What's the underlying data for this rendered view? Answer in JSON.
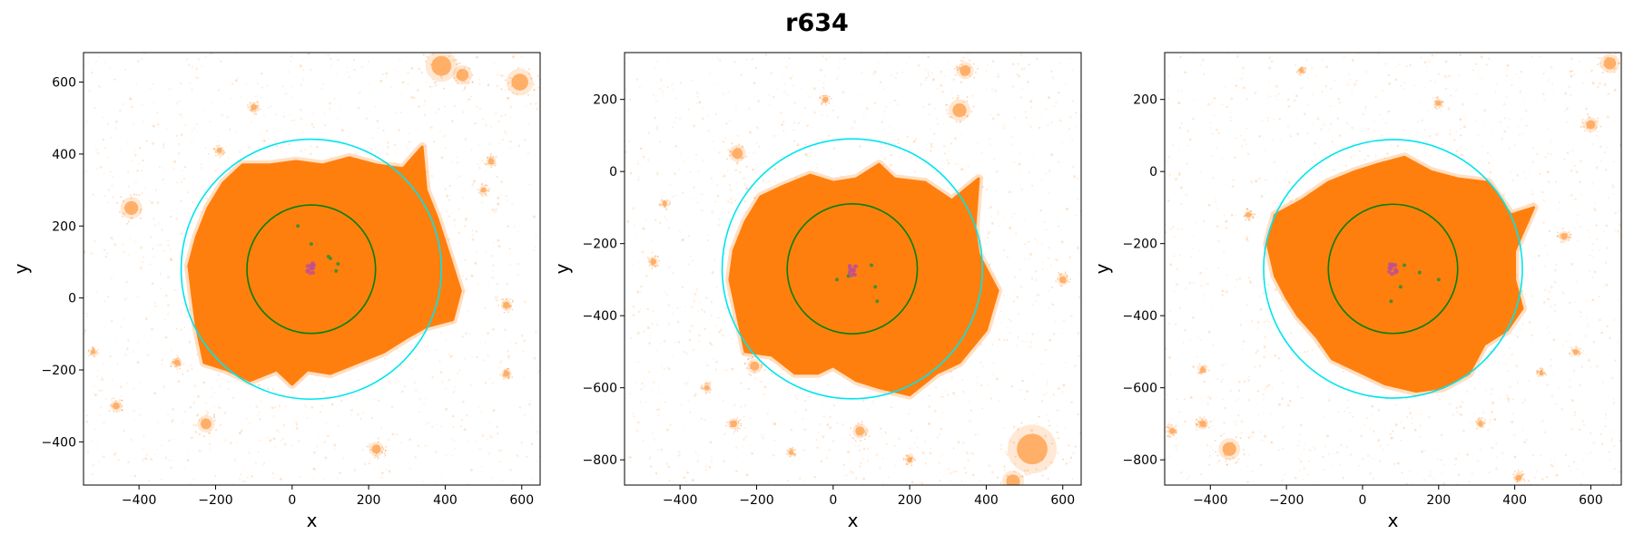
{
  "title": "r634",
  "colors": {
    "particles": "#ff7f0e",
    "outer_circle": "#00e5ee",
    "inner_circle": "#008000",
    "subhalos": "#4c8c2a",
    "center_cluster": "#c05090"
  },
  "chart_data": [
    {
      "type": "scatter",
      "xlabel": "x",
      "ylabel": "y",
      "xlim": [
        -545,
        648
      ],
      "ylim": [
        -520,
        682
      ],
      "xticks": [
        -400,
        -200,
        0,
        200,
        400,
        600
      ],
      "yticks": [
        -400,
        -200,
        0,
        200,
        400,
        600
      ],
      "xtick_labels": [
        "−400",
        "−200",
        "0",
        "200",
        "400",
        "600"
      ],
      "ytick_labels": [
        "−400",
        "−200",
        "0",
        "200",
        "400",
        "600"
      ],
      "outer_circle": {
        "cx": 50,
        "cy": 80,
        "r": 340
      },
      "inner_circle": {
        "cx": 50,
        "cy": 80,
        "r": 168
      },
      "blob": [
        [
          -230,
          -180
        ],
        [
          -170,
          -200
        ],
        [
          -110,
          -230
        ],
        [
          -40,
          -200
        ],
        [
          0,
          -240
        ],
        [
          40,
          -200
        ],
        [
          100,
          -210
        ],
        [
          170,
          -180
        ],
        [
          240,
          -150
        ],
        [
          300,
          -110
        ],
        [
          350,
          -80
        ],
        [
          420,
          -60
        ],
        [
          440,
          20
        ],
        [
          410,
          120
        ],
        [
          380,
          220
        ],
        [
          350,
          300
        ],
        [
          340,
          420
        ],
        [
          290,
          360
        ],
        [
          220,
          370
        ],
        [
          150,
          390
        ],
        [
          80,
          370
        ],
        [
          10,
          380
        ],
        [
          -60,
          370
        ],
        [
          -130,
          370
        ],
        [
          -180,
          320
        ],
        [
          -220,
          250
        ],
        [
          -250,
          170
        ],
        [
          -270,
          90
        ],
        [
          -260,
          0
        ],
        [
          -250,
          -80
        ]
      ],
      "clumps": [
        [
          -420,
          250,
          18
        ],
        [
          -225,
          -350,
          14
        ],
        [
          -460,
          -300,
          9
        ],
        [
          595,
          600,
          22
        ],
        [
          390,
          645,
          26
        ],
        [
          445,
          620,
          16
        ],
        [
          -100,
          530,
          8
        ],
        [
          520,
          380,
          8
        ],
        [
          560,
          -20,
          9
        ],
        [
          -300,
          -180,
          8
        ],
        [
          220,
          -420,
          12
        ],
        [
          560,
          -210,
          8
        ],
        [
          -520,
          -150,
          6
        ],
        [
          -190,
          410,
          7
        ],
        [
          500,
          300,
          7
        ]
      ],
      "subhalos": [
        [
          15,
          200
        ],
        [
          50,
          150
        ],
        [
          100,
          110
        ],
        [
          120,
          95
        ],
        [
          115,
          75
        ],
        [
          95,
          115
        ]
      ],
      "center": [
        50,
        82
      ]
    },
    {
      "type": "scatter",
      "xlabel": "x",
      "ylabel": "y",
      "xlim": [
        -545,
        648
      ],
      "ylim": [
        -870,
        330
      ],
      "xticks": [
        -400,
        -200,
        0,
        200,
        400,
        600
      ],
      "yticks": [
        -800,
        -600,
        -400,
        -200,
        0,
        200
      ],
      "xtick_labels": [
        "−400",
        "−200",
        "0",
        "200",
        "400",
        "600"
      ],
      "ytick_labels": [
        "−800",
        "−600",
        "−400",
        "−200",
        "0",
        "200"
      ],
      "outer_circle": {
        "cx": 50,
        "cy": -270,
        "r": 340
      },
      "inner_circle": {
        "cx": 50,
        "cy": -270,
        "r": 170
      },
      "blob": [
        [
          -230,
          -500
        ],
        [
          -160,
          -510
        ],
        [
          -100,
          -560
        ],
        [
          -40,
          -560
        ],
        [
          0,
          -540
        ],
        [
          60,
          -580
        ],
        [
          120,
          -600
        ],
        [
          200,
          -620
        ],
        [
          270,
          -560
        ],
        [
          330,
          -530
        ],
        [
          400,
          -440
        ],
        [
          430,
          -330
        ],
        [
          380,
          -230
        ],
        [
          370,
          -160
        ],
        [
          380,
          -20
        ],
        [
          310,
          -80
        ],
        [
          240,
          -30
        ],
        [
          160,
          -20
        ],
        [
          120,
          20
        ],
        [
          60,
          -20
        ],
        [
          0,
          -30
        ],
        [
          -60,
          -10
        ],
        [
          -130,
          -40
        ],
        [
          -190,
          -70
        ],
        [
          -230,
          -140
        ],
        [
          -260,
          -220
        ],
        [
          -270,
          -300
        ],
        [
          -250,
          -400
        ]
      ],
      "clumps": [
        [
          -250,
          50,
          14
        ],
        [
          520,
          -770,
          40
        ],
        [
          470,
          -860,
          18
        ],
        [
          330,
          170,
          18
        ],
        [
          345,
          280,
          14
        ],
        [
          -205,
          -540,
          12
        ],
        [
          -260,
          -700,
          9
        ],
        [
          70,
          -720,
          12
        ],
        [
          -470,
          -250,
          8
        ],
        [
          -330,
          -600,
          7
        ],
        [
          600,
          -300,
          9
        ],
        [
          -20,
          200,
          7
        ],
        [
          -440,
          -90,
          6
        ],
        [
          200,
          -800,
          7
        ],
        [
          -110,
          -780,
          6
        ]
      ],
      "subhalos": [
        [
          10,
          -300
        ],
        [
          100,
          -260
        ],
        [
          110,
          -320
        ],
        [
          115,
          -360
        ],
        [
          40,
          -290
        ]
      ],
      "center": [
        50,
        -275
      ]
    },
    {
      "type": "scatter",
      "xlabel": "x",
      "ylabel": "y",
      "xlim": [
        -520,
        680
      ],
      "ylim": [
        -870,
        330
      ],
      "xticks": [
        -400,
        -200,
        0,
        200,
        400,
        600
      ],
      "yticks": [
        -800,
        -600,
        -400,
        -200,
        0,
        200
      ],
      "xtick_labels": [
        "−400",
        "−200",
        "0",
        "200",
        "400",
        "600"
      ],
      "ytick_labels": [
        "−800",
        "−600",
        "−400",
        "−200",
        "0",
        "200"
      ],
      "outer_circle": {
        "cx": 80,
        "cy": -270,
        "r": 340
      },
      "inner_circle": {
        "cx": 80,
        "cy": -270,
        "r": 170
      },
      "blob": [
        [
          -170,
          -400
        ],
        [
          -120,
          -460
        ],
        [
          -80,
          -520
        ],
        [
          0,
          -560
        ],
        [
          60,
          -590
        ],
        [
          140,
          -610
        ],
        [
          210,
          -600
        ],
        [
          280,
          -560
        ],
        [
          320,
          -480
        ],
        [
          380,
          -440
        ],
        [
          420,
          -380
        ],
        [
          400,
          -300
        ],
        [
          400,
          -220
        ],
        [
          450,
          -100
        ],
        [
          390,
          -120
        ],
        [
          330,
          -30
        ],
        [
          250,
          -20
        ],
        [
          180,
          0
        ],
        [
          110,
          40
        ],
        [
          40,
          20
        ],
        [
          -20,
          0
        ],
        [
          -90,
          -30
        ],
        [
          -160,
          -80
        ],
        [
          -230,
          -120
        ],
        [
          -250,
          -200
        ],
        [
          -230,
          -290
        ],
        [
          -200,
          -350
        ]
      ],
      "clumps": [
        [
          -350,
          -770,
          18
        ],
        [
          650,
          300,
          16
        ],
        [
          600,
          130,
          12
        ],
        [
          -420,
          -700,
          9
        ],
        [
          530,
          -180,
          9
        ],
        [
          -500,
          -720,
          8
        ],
        [
          410,
          -850,
          8
        ],
        [
          -420,
          -550,
          7
        ],
        [
          200,
          190,
          7
        ],
        [
          -300,
          -120,
          7
        ],
        [
          560,
          -500,
          7
        ],
        [
          -160,
          280,
          6
        ],
        [
          310,
          -700,
          7
        ],
        [
          470,
          -560,
          6
        ]
      ],
      "subhalos": [
        [
          75,
          -360
        ],
        [
          100,
          -320
        ],
        [
          150,
          -280
        ],
        [
          200,
          -300
        ],
        [
          110,
          -260
        ]
      ],
      "center": [
        80,
        -272
      ]
    }
  ]
}
